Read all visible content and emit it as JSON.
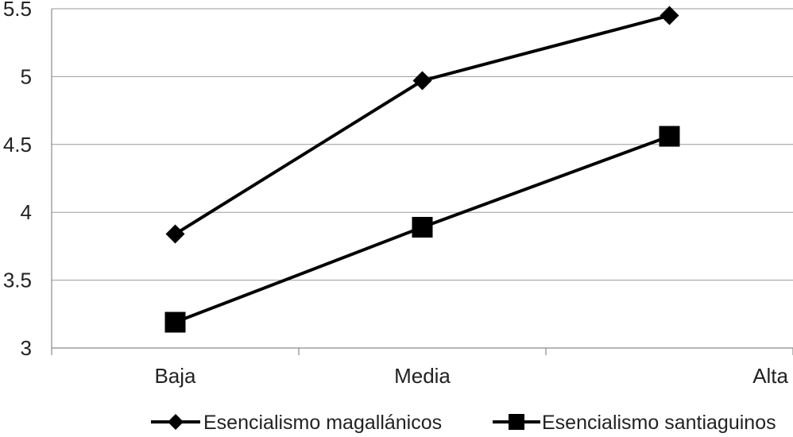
{
  "chart_data": {
    "type": "line",
    "title": "",
    "xlabel": "",
    "ylabel": "",
    "categories": [
      "Baja",
      "Media",
      "Alta"
    ],
    "ylim": [
      3,
      5.5
    ],
    "yticks": [
      3,
      3.5,
      4,
      4.5,
      5,
      5.5
    ],
    "ytick_labels": [
      "3",
      "3.5",
      "4",
      "4.5",
      "5",
      "5.5"
    ],
    "grid": true,
    "legend_position": "bottom",
    "series": [
      {
        "name": "Esencialismo magallánicos",
        "marker": "diamond",
        "color": "#000000",
        "values": [
          3.84,
          4.97,
          5.45
        ]
      },
      {
        "name": "Esencialismo santiaguinos",
        "marker": "square",
        "color": "#000000",
        "values": [
          3.19,
          3.89,
          4.56
        ]
      }
    ]
  }
}
